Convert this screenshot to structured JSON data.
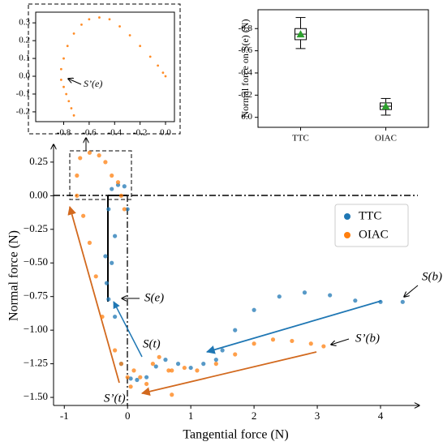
{
  "chart_data": [
    {
      "type": "scatter",
      "xlabel": "Tangential force (N)",
      "ylabel": "Normal force (N)",
      "xlim": [
        -1.17,
        4.59
      ],
      "ylim": [
        -1.56,
        0.37
      ],
      "xticks": [
        -1,
        0,
        1,
        2,
        3,
        4
      ],
      "yticks": [
        {
          "value": 0.25,
          "label": "0.25"
        },
        {
          "value": 0,
          "label": "0.00"
        },
        {
          "value": -0.25,
          "label": "−0.25"
        },
        {
          "value": -0.5,
          "label": "−0.50"
        },
        {
          "value": -0.75,
          "label": "−0.75"
        },
        {
          "value": -1,
          "label": "−1.00"
        },
        {
          "value": -1.25,
          "label": "−1.25"
        },
        {
          "value": -1.5,
          "label": "−1.50"
        }
      ],
      "legend": "upper right",
      "annotations": [
        "S(b)",
        "S(e)",
        "S(t)",
        "S’(b)",
        "S’(t)"
      ],
      "series": [
        {
          "name": "TTC",
          "color": "#1f77b4",
          "x": [
            4.35,
            4.0,
            3.6,
            3.2,
            2.8,
            2.4,
            2.0,
            1.7,
            1.5,
            1.4,
            1.2,
            1.0,
            0.8,
            0.6,
            0.45,
            0.3,
            0.15,
            0.05,
            -0.1,
            -0.2,
            -0.25,
            -0.3,
            -0.25,
            -0.15,
            -0.05,
            0.0,
            -0.2,
            -0.35,
            -0.33,
            -0.3
          ],
          "values": [
            -0.79,
            -0.79,
            -0.78,
            -0.74,
            -0.72,
            -0.75,
            -0.85,
            -1.0,
            -1.15,
            -1.22,
            -1.25,
            -1.28,
            -1.25,
            -1.22,
            -1.27,
            -1.35,
            -1.37,
            -1.36,
            -1.25,
            -0.9,
            -0.5,
            -0.1,
            0.05,
            0.08,
            0.07,
            -0.1,
            -0.3,
            -0.45,
            -0.65,
            -0.77
          ]
        },
        {
          "name": "OIAC",
          "color": "#ff7f0e",
          "x": [
            3.1,
            2.9,
            2.6,
            2.3,
            2.0,
            1.7,
            1.4,
            1.1,
            0.9,
            0.7,
            0.7,
            0.65,
            0.5,
            0.4,
            0.3,
            0.2,
            0.1,
            0.05,
            0.0,
            -0.1,
            -0.2,
            -0.4,
            -0.5,
            -0.6,
            -0.7,
            -0.8,
            -0.8,
            -0.75,
            -0.6,
            -0.45,
            -0.35,
            -0.25,
            -0.15,
            -0.1,
            -0.05
          ],
          "values": [
            -1.12,
            -1.1,
            -1.08,
            -1.07,
            -1.1,
            -1.18,
            -1.25,
            -1.3,
            -1.28,
            -1.3,
            -1.48,
            -1.3,
            -1.2,
            -1.25,
            -1.4,
            -1.35,
            -1.3,
            -1.42,
            -1.35,
            -1.25,
            -1.15,
            -0.9,
            -0.6,
            -0.35,
            -0.15,
            0.0,
            0.15,
            0.28,
            0.32,
            0.3,
            0.25,
            0.15,
            0.1,
            0.0,
            -0.1
          ]
        }
      ]
    },
    {
      "type": "scatter",
      "xlim": [
        -1.02,
        0.07
      ],
      "ylim": [
        -0.255,
        0.36
      ],
      "xticks": [
        -0.8,
        -0.6,
        -0.4,
        -0.2,
        {
          "value": 0,
          "label": "0.0"
        }
      ],
      "yticks": [
        0.3,
        0.2,
        0.1,
        {
          "value": 0,
          "label": "0.0"
        },
        -0.1,
        -0.2
      ],
      "annotations": [
        "S’(e)"
      ],
      "series": [
        {
          "name": "OIAC",
          "color": "#ff7f0e",
          "x": [
            -0.72,
            -0.74,
            -0.76,
            -0.78,
            -0.8,
            -0.82,
            -0.82,
            -0.8,
            -0.77,
            -0.72,
            -0.66,
            -0.6,
            -0.52,
            -0.44,
            -0.36,
            -0.28,
            -0.2,
            -0.12,
            -0.06,
            -0.02,
            0.0
          ],
          "values": [
            -0.22,
            -0.18,
            -0.14,
            -0.1,
            -0.06,
            -0.02,
            0.04,
            0.1,
            0.17,
            0.24,
            0.29,
            0.32,
            0.33,
            0.32,
            0.28,
            0.23,
            0.17,
            0.11,
            0.06,
            0.02,
            0.0
          ]
        }
      ]
    },
    {
      "type": "box",
      "ylabel": "Normal force on S(e) (N)",
      "ylim": [
        0.09,
        -0.97
      ],
      "yticks": [
        -0.8,
        -0.6,
        -0.4,
        -0.2,
        {
          "value": 0,
          "label": "0.0"
        }
      ],
      "categories": [
        "TTC",
        "OIAC"
      ],
      "mean_color": "#2ca02c",
      "whislo": [
        -0.62,
        -0.02
      ],
      "q1": [
        -0.7,
        -0.07
      ],
      "median": [
        -0.75,
        -0.1
      ],
      "q3": [
        -0.8,
        -0.13
      ],
      "whishi": [
        -0.9,
        -0.17
      ],
      "mean": [
        -0.75,
        -0.1
      ]
    }
  ]
}
